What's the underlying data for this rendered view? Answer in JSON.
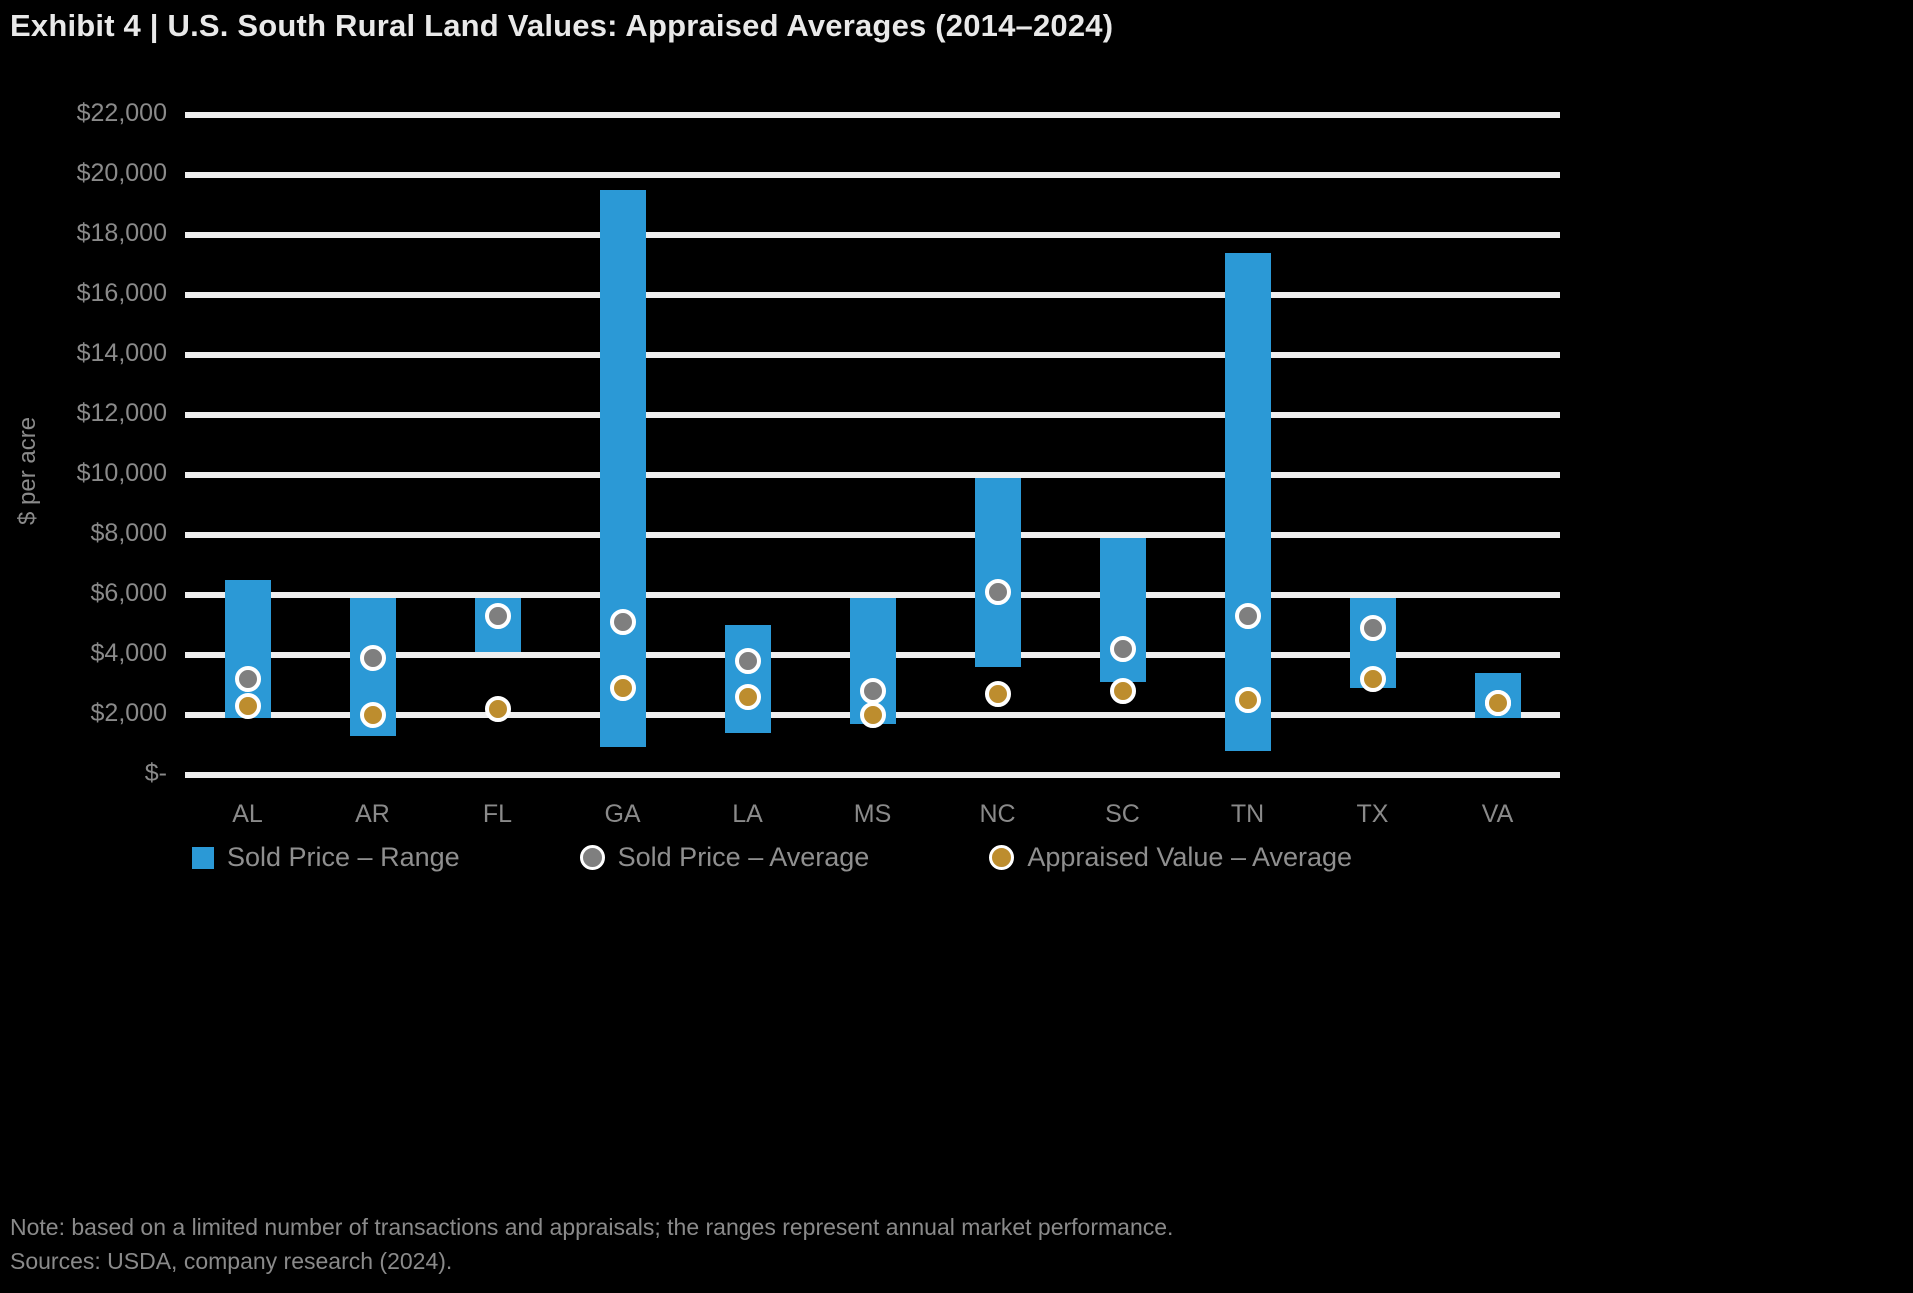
{
  "page": {
    "title": "Exhibit 4  |  U.S. South Rural Land Values: Appraised Averages (2014–2024)",
    "footnote_line1": "Note: based on a limited number of transactions and appraisals; the ranges represent annual market performance.",
    "footnote_line2": "Sources: USDA, company research (2024)."
  },
  "chart_data": {
    "type": "bar",
    "subtype": "floating-range-bars-with-average-points",
    "title": "Exhibit 4  |  U.S. South Rural Land Values: Appraised Averages (2014–2024)",
    "xlabel": "",
    "ylabel": "$ per acre",
    "ylim": [
      0,
      22000
    ],
    "ytick_interval": 2000,
    "ytick_labels": [
      "$-",
      "$2,000",
      "$4,000",
      "$6,000",
      "$8,000",
      "$10,000",
      "$12,000",
      "$14,000",
      "$16,000",
      "$18,000",
      "$20,000",
      "$22,000"
    ],
    "grid": true,
    "legend_position": "bottom",
    "categories": [
      "AL",
      "AR",
      "FL",
      "GA",
      "LA",
      "MS",
      "NC",
      "SC",
      "TN",
      "TX",
      "VA"
    ],
    "series": [
      {
        "name": "Sold Price – Range",
        "type": "range",
        "low": [
          1900,
          1300,
          4100,
          950,
          1400,
          1700,
          3600,
          3100,
          800,
          2900,
          1900
        ],
        "high": [
          6500,
          5900,
          5900,
          19500,
          5000,
          5900,
          9900,
          7900,
          17400,
          5900,
          3400
        ]
      },
      {
        "name": "Sold Price – Average",
        "type": "point",
        "values": [
          3200,
          3900,
          5300,
          5100,
          3800,
          2800,
          6100,
          4200,
          5300,
          4900,
          2400
        ]
      },
      {
        "name": "Appraised Value – Average",
        "type": "point",
        "values": [
          2300,
          2000,
          2200,
          2900,
          2600,
          2000,
          2700,
          2800,
          2500,
          3200,
          2400
        ]
      }
    ],
    "colors": {
      "range_bar": "#2b99d6",
      "sold_avg_dot": "#7f7f7f",
      "appraised_avg_dot": "#bd8d2e",
      "dot_ring": "#ffffff",
      "gridline": "#efefef",
      "background": "#000000",
      "axis_text": "#8a8a8a",
      "title_text": "#e9e9e9"
    }
  }
}
